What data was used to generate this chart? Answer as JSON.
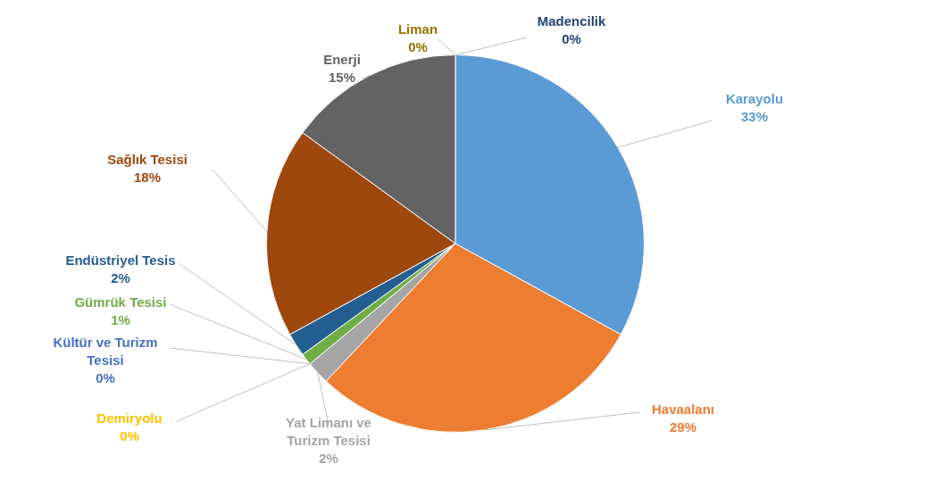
{
  "chart_data": {
    "type": "pie",
    "categories": [
      "Karayolu",
      "Havaalanı",
      "Yat Limanı ve Turizm Tesisi",
      "Demiryolu",
      "Kültür ve Turizm Tesisi",
      "Gümrük Tesisi",
      "Endüstriyel Tesis",
      "Sağlık Tesisi",
      "Enerji",
      "Liman",
      "Madencilik"
    ],
    "values": [
      33,
      29,
      2,
      0,
      0,
      1,
      2,
      18,
      15,
      0,
      0
    ],
    "value_labels": [
      "33%",
      "29%",
      "2%",
      "0%",
      "0%",
      "1%",
      "2%",
      "18%",
      "15%",
      "0%",
      "0%"
    ],
    "colors": [
      "#5b9bd5",
      "#ed7d31",
      "#a5a5a5",
      "#ffc000",
      "#4472c4",
      "#70ad47",
      "#255e91",
      "#9e480e",
      "#636363",
      "#997300",
      "#264478"
    ],
    "legend": false
  }
}
